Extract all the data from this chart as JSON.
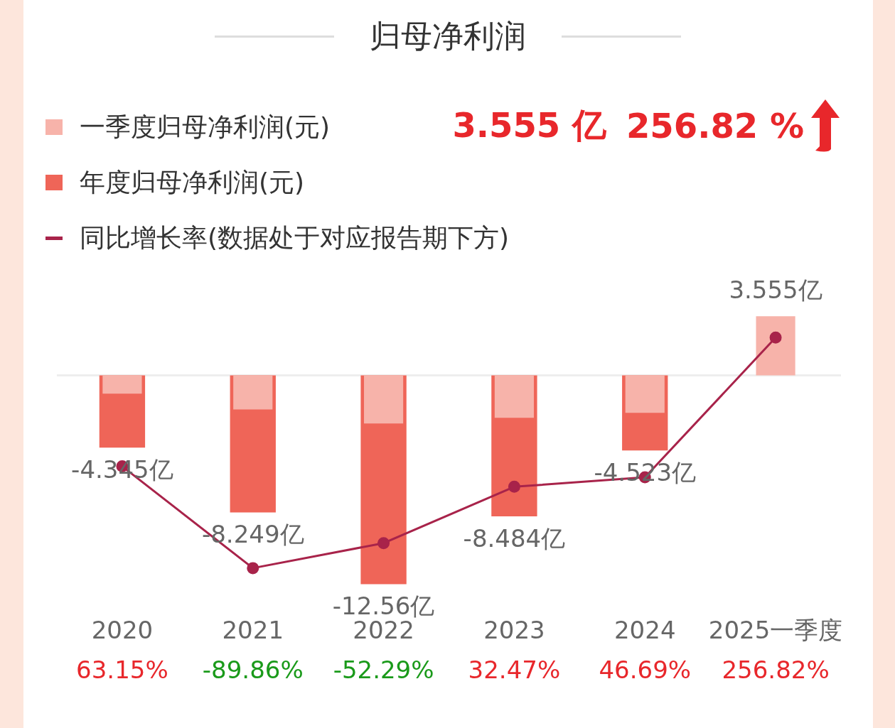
{
  "chart_data": {
    "type": "bar",
    "title": "归母净利润",
    "categories": [
      "2020",
      "2021",
      "2022",
      "2023",
      "2024",
      "2025一季度"
    ],
    "series": [
      {
        "name": "一季度归母净利润(元)",
        "color": "#f7b3aa",
        "values": [
          -1.1,
          -2.05,
          -2.9,
          -2.55,
          -2.25,
          3.555
        ],
        "value_labels": [
          null,
          null,
          null,
          null,
          null,
          "3.555亿"
        ]
      },
      {
        "name": "年度归母净利润(元)",
        "color": "#ef6558",
        "values": [
          -4.345,
          -8.249,
          -12.56,
          -8.484,
          -4.523,
          null
        ],
        "value_labels": [
          "-4.345亿",
          "-8.249亿",
          "-12.56亿",
          "-8.484亿",
          "-4.523亿",
          null
        ]
      },
      {
        "name": "同比增长率(数据处于对应报告期下方)",
        "type": "line",
        "axis": "y2",
        "color": "#a8234a",
        "values": [
          63.15,
          -89.86,
          -52.29,
          32.47,
          46.69,
          256.82
        ],
        "value_labels": [
          "63.15%",
          "-89.86%",
          "-52.29%",
          "32.47%",
          "46.69%",
          "256.82%"
        ]
      }
    ],
    "tick_labels": "x",
    "grid": false,
    "legend": "top left",
    "marker": "circle",
    "annotations": [
      "3.555 亿",
      "256.82 %"
    ]
  }
}
